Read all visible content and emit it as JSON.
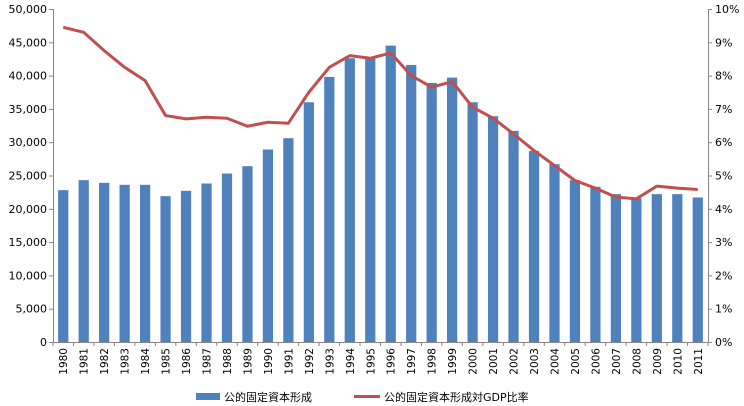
{
  "chart_data": {
    "type": "bar",
    "categories": [
      "1980",
      "1981",
      "1982",
      "1983",
      "1984",
      "1985",
      "1986",
      "1987",
      "1988",
      "1989",
      "1990",
      "1991",
      "1992",
      "1993",
      "1994",
      "1995",
      "1996",
      "1997",
      "1998",
      "1999",
      "2000",
      "2001",
      "2002",
      "2003",
      "2004",
      "2005",
      "2006",
      "2007",
      "2008",
      "2009",
      "2010",
      "2011"
    ],
    "series": [
      {
        "name": "公的固定資本形成",
        "type": "bar",
        "axis": "left",
        "color": "#4f81bd",
        "values": [
          22800,
          24300,
          23900,
          23600,
          23600,
          21900,
          22700,
          23800,
          25300,
          26400,
          28900,
          30600,
          36000,
          39800,
          42600,
          42600,
          44500,
          41600,
          38900,
          39700,
          36000,
          33900,
          31700,
          28700,
          26700,
          24300,
          23300,
          22200,
          21600,
          22200,
          22200,
          21700
        ]
      },
      {
        "name": "公的固定資本形成対GDP比率",
        "type": "line",
        "axis": "right",
        "color": "#c0504d",
        "values": [
          9.45,
          9.3,
          8.75,
          8.25,
          7.85,
          6.8,
          6.7,
          6.75,
          6.72,
          6.48,
          6.6,
          6.57,
          7.5,
          8.25,
          8.6,
          8.52,
          8.68,
          8.0,
          7.65,
          7.82,
          7.05,
          6.72,
          6.25,
          5.75,
          5.3,
          4.85,
          4.62,
          4.35,
          4.3,
          4.68,
          4.62,
          4.58
        ]
      }
    ],
    "y_left": {
      "min": 0,
      "max": 50000,
      "tick_labels": [
        "0",
        "5,000",
        "10,000",
        "15,000",
        "20,000",
        "25,000",
        "30,000",
        "35,000",
        "40,000",
        "45,000",
        "50,000"
      ]
    },
    "y_right": {
      "min": 0,
      "max": 10,
      "tick_labels": [
        "0%",
        "1%",
        "2%",
        "3%",
        "4%",
        "5%",
        "6%",
        "7%",
        "8%",
        "9%",
        "10%"
      ]
    },
    "legend_position": "bottom",
    "grid": false
  }
}
